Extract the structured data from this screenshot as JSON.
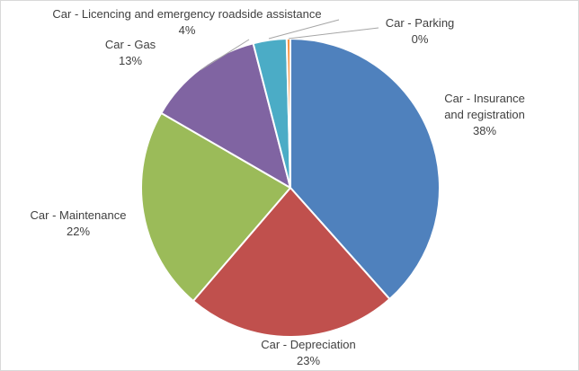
{
  "chart_data": {
    "type": "pie",
    "title": "",
    "slices": [
      {
        "label": "Car - Insurance and registration",
        "label_lines": [
          "Car - Insurance",
          "and registration"
        ],
        "percent_label": "38%",
        "value": 38.3,
        "color": "#4f81bd"
      },
      {
        "label": "Car - Depreciation",
        "label_lines": [
          "Car - Depreciation"
        ],
        "percent_label": "23%",
        "value": 22.8,
        "color": "#c0504d"
      },
      {
        "label": "Car - Maintenance",
        "label_lines": [
          "Car - Maintenance"
        ],
        "percent_label": "22%",
        "value": 22.0,
        "color": "#9bbb59"
      },
      {
        "label": "Car - Gas",
        "label_lines": [
          "Car - Gas"
        ],
        "percent_label": "13%",
        "value": 12.6,
        "color": "#8064a2"
      },
      {
        "label": "Car - Licencing and emergency roadside assistance",
        "label_lines": [
          "Car - Licencing and emergency roadside assistance"
        ],
        "percent_label": "4%",
        "value": 3.6,
        "color": "#4bacc6"
      },
      {
        "label": "Car - Parking",
        "label_lines": [
          "Car - Parking"
        ],
        "percent_label": "0%",
        "value": 0.4,
        "color": "#f79646"
      }
    ]
  }
}
